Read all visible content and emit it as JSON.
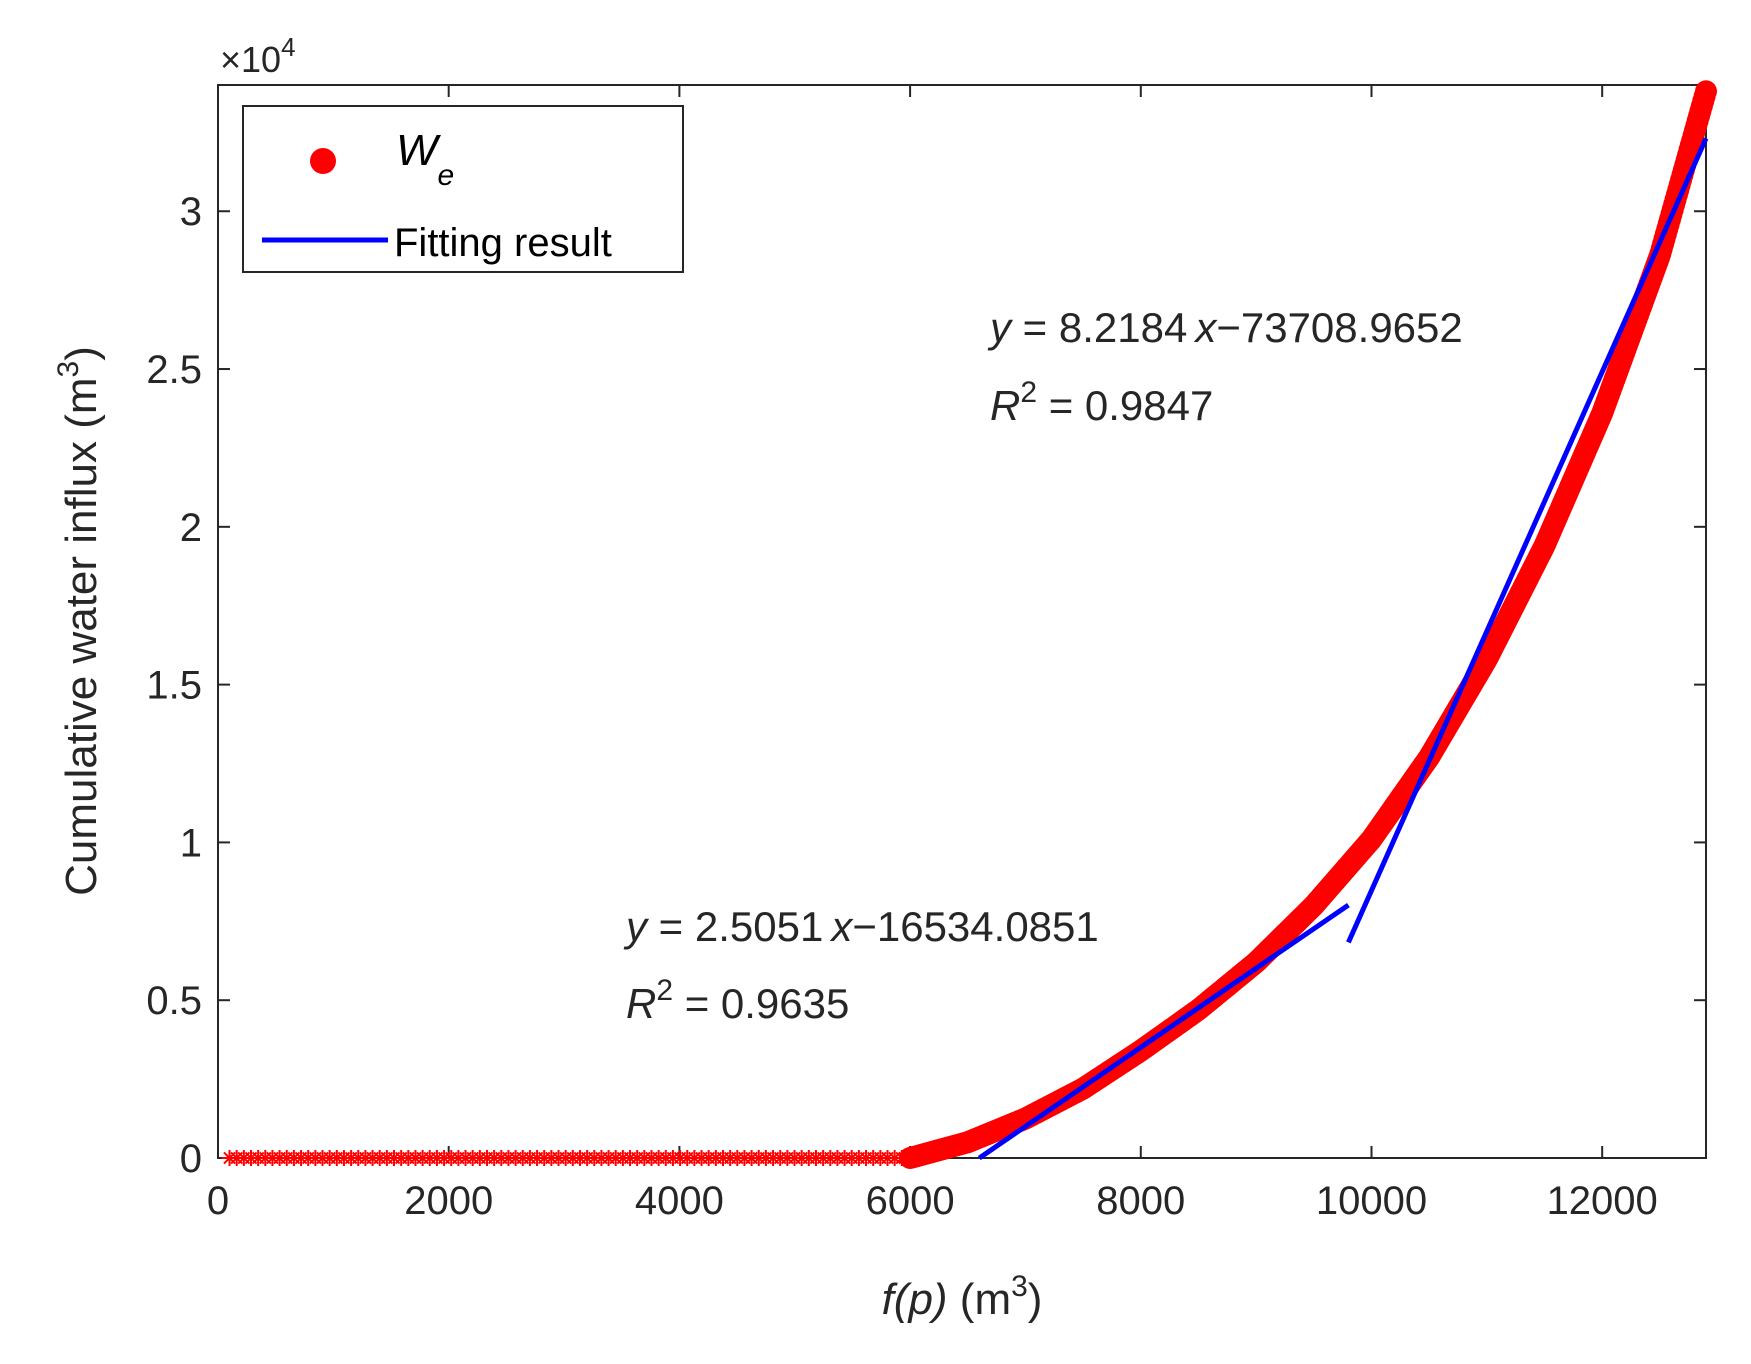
{
  "chart_data": {
    "type": "scatter",
    "title": "",
    "xlabel": {
      "italic": "f(p)",
      "unit": " (m",
      "sup": "3",
      "close": ")"
    },
    "ylabel": {
      "text": "Cumulative water influx (m",
      "sup": "3",
      "close": ")"
    },
    "y_exponent": {
      "prefix": "×10",
      "sup": "4"
    },
    "xlim": [
      0,
      12900
    ],
    "ylim": [
      0,
      34000
    ],
    "x_ticks": [
      0,
      2000,
      4000,
      6000,
      8000,
      10000,
      12000
    ],
    "x_tick_labels": [
      "0",
      "2000",
      "4000",
      "6000",
      "8000",
      "10000",
      "12000"
    ],
    "y_ticks": [
      0,
      5000,
      10000,
      15000,
      20000,
      25000,
      30000
    ],
    "y_tick_labels": [
      "0",
      "0.5",
      "1",
      "1.5",
      "2",
      "2.5",
      "3"
    ],
    "grid": false,
    "legend": {
      "position": "top-left",
      "entries": [
        {
          "label_main": "W",
          "label_sub": "e",
          "marker": "filled-circle",
          "color": "#ff0000"
        },
        {
          "label": "Fitting result",
          "marker": "line",
          "color": "#0000ff"
        }
      ]
    },
    "series": [
      {
        "name": "W_e (zero region)",
        "marker": "asterisk",
        "color": "#ff0000",
        "x_range": [
          100,
          6000
        ],
        "y": 0
      },
      {
        "name": "W_e",
        "marker": "filled-circle",
        "color": "#ff0000",
        "x": [
          6000,
          6500,
          7000,
          7500,
          8000,
          8500,
          9000,
          9500,
          10000,
          10500,
          11000,
          11500,
          12000,
          12500,
          12900
        ],
        "y": [
          0,
          500,
          1250,
          2200,
          3400,
          4700,
          6200,
          8000,
          10100,
          12700,
          15800,
          19400,
          23600,
          28600,
          33800
        ]
      },
      {
        "name": "Fitting result (segment 1)",
        "marker": "line",
        "color": "#0000ff",
        "slope": 2.5051,
        "intercept": -16534.0851,
        "x_range": [
          6600,
          9800
        ]
      },
      {
        "name": "Fitting result (segment 2)",
        "marker": "line",
        "color": "#0000ff",
        "slope": 8.2184,
        "intercept": -73708.9652,
        "x_range": [
          9800,
          12900
        ]
      }
    ],
    "annotations": [
      {
        "eq_y": "y",
        "eq_mid": " = 8.2184",
        "eq_x": "x",
        "eq_tail": "−73708.9652",
        "r2_R": "R",
        "r2_sup": "2",
        "r2_tail": " = 0.9847"
      },
      {
        "eq_y": "y",
        "eq_mid": " = 2.5051",
        "eq_x": "x",
        "eq_tail": "−16534.0851",
        "r2_R": "R",
        "r2_sup": "2",
        "r2_tail": " = 0.9635"
      }
    ]
  }
}
